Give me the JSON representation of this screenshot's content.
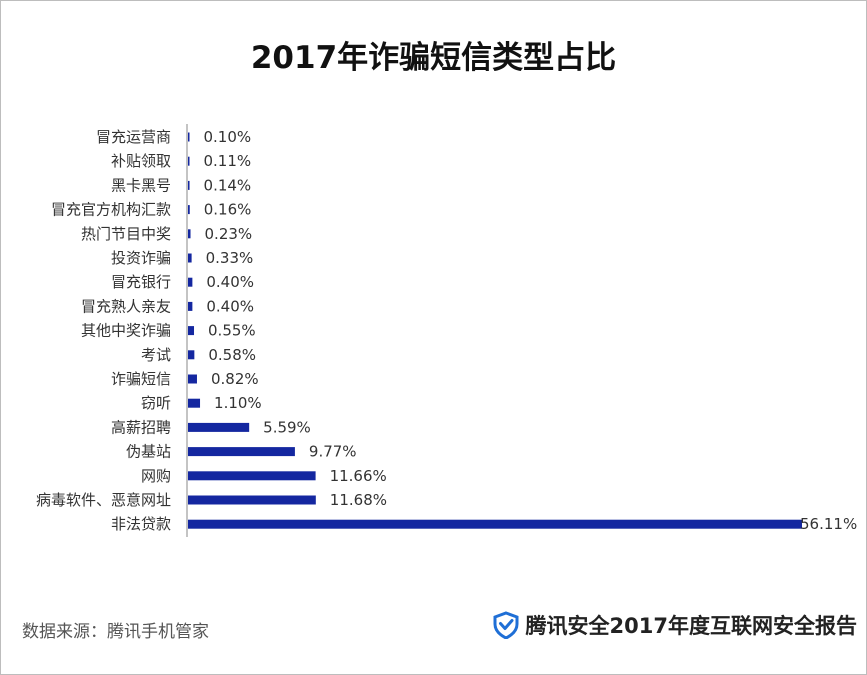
{
  "chart_data": {
    "type": "bar",
    "orientation": "horizontal",
    "title": "2017年诈骗短信类型占比",
    "categories": [
      "冒充运营商",
      "补贴领取",
      "黑卡黑号",
      "冒充官方机构汇款",
      "热门节目中奖",
      "投资诈骗",
      "冒充银行",
      "冒充熟人亲友",
      "其他中奖诈骗",
      "考试",
      "诈骗短信",
      "窃听",
      "高薪招聘",
      "伪基站",
      "网购",
      "病毒软件、恶意网址",
      "非法贷款"
    ],
    "values": [
      0.1,
      0.11,
      0.14,
      0.16,
      0.23,
      0.33,
      0.4,
      0.4,
      0.55,
      0.58,
      0.82,
      1.1,
      5.59,
      9.77,
      11.66,
      11.68,
      56.11
    ],
    "value_labels": [
      "0.10%",
      "0.11%",
      "0.14%",
      "0.16%",
      "0.23%",
      "0.33%",
      "0.40%",
      "0.40%",
      "0.55%",
      "0.58%",
      "0.82%",
      "1.10%",
      "5.59%",
      "9.77%",
      "11.66%",
      "11.68%",
      "56.11%"
    ],
    "unit": "%",
    "xlim": [
      0,
      56.11
    ],
    "bar_color": "#1427a0",
    "grid": false
  },
  "footer": {
    "source": "数据来源：腾讯手机管家",
    "brand": "腾讯安全2017年度互联网安全报告",
    "brand_icon": "shield-check-icon",
    "brand_color": "#1f6fd6"
  }
}
